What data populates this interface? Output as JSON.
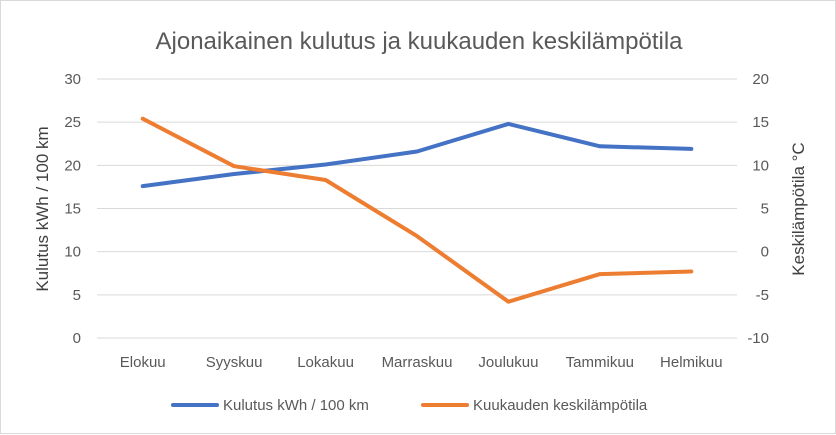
{
  "chart_data": {
    "type": "line",
    "title": "Ajonaikainen kulutus ja kuukauden keskilämpötila",
    "categories": [
      "Elokuu",
      "Syyskuu",
      "Lokakuu",
      "Marraskuu",
      "Joulukuu",
      "Tammikuu",
      "Helmikuu"
    ],
    "ylabel": "Kulutus kWh / 100 km",
    "y2label": "Keskilämpötila °C",
    "ylim": [
      0,
      30
    ],
    "y_ticks": [
      "0",
      "5",
      "10",
      "15",
      "20",
      "25",
      "30"
    ],
    "y2lim": [
      -10,
      20
    ],
    "y2_ticks": [
      "-10",
      "-5",
      "0",
      "5",
      "10",
      "15",
      "20"
    ],
    "grid": true,
    "legend_position": "bottom",
    "series": [
      {
        "name": "Kulutus kWh / 100 km",
        "axis": "left",
        "color": "#4472c4",
        "values": [
          17.6,
          19.0,
          20.1,
          21.6,
          24.8,
          22.2,
          21.9
        ]
      },
      {
        "name": "Kuukauden keskilämpötila",
        "axis": "right",
        "color": "#ed7d31",
        "values": [
          15.4,
          9.9,
          8.3,
          1.8,
          -5.8,
          -2.6,
          -2.3
        ]
      }
    ]
  }
}
